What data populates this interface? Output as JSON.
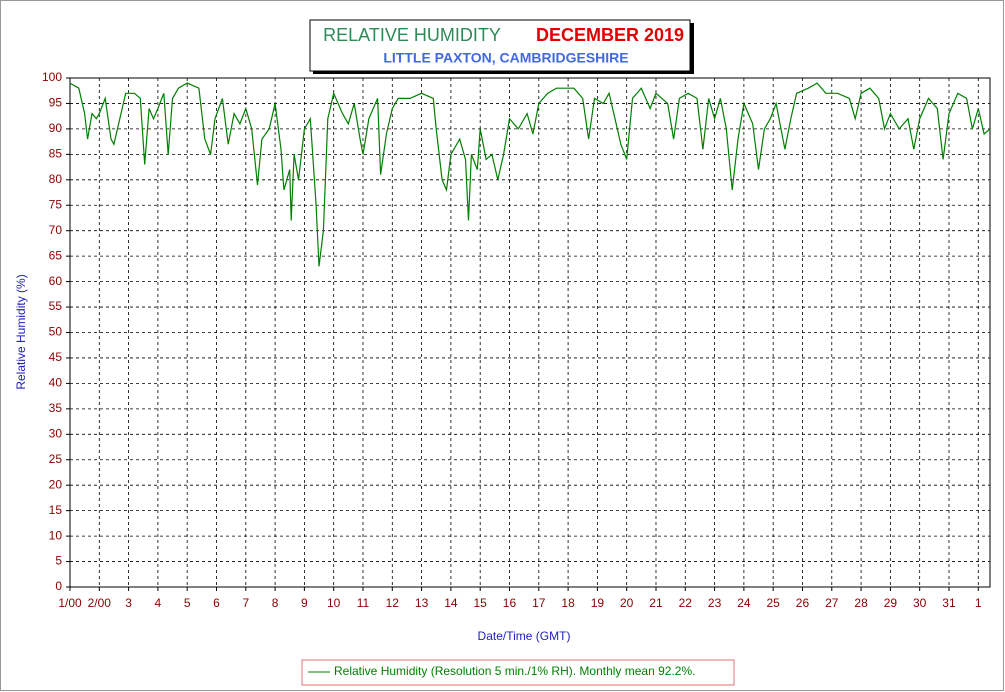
{
  "chart_data": {
    "type": "line",
    "title": "RELATIVE HUMIDITY",
    "title_period": "DECEMBER 2019",
    "subtitle": "LITTLE PAXTON, CAMBRIDGESHIRE",
    "xlabel": "Date/Time (GMT)",
    "ylabel": "Relative Humidity (%)",
    "xlim": [
      1,
      32.4
    ],
    "ylim": [
      0,
      100
    ],
    "xticks": [
      {
        "value": 1,
        "label": "1/00"
      },
      {
        "value": 2,
        "label": "2/00"
      },
      3,
      4,
      5,
      6,
      7,
      8,
      9,
      10,
      11,
      12,
      13,
      14,
      15,
      16,
      17,
      18,
      19,
      20,
      21,
      22,
      23,
      24,
      25,
      26,
      27,
      28,
      29,
      30,
      31,
      {
        "value": 32,
        "label": "1"
      }
    ],
    "yticks": [
      0,
      5,
      10,
      15,
      20,
      25,
      30,
      35,
      40,
      45,
      50,
      55,
      60,
      65,
      70,
      75,
      80,
      85,
      90,
      95,
      100
    ],
    "grid": true,
    "legend": "bottom",
    "x": [
      1.0,
      1.3,
      1.5,
      1.6,
      1.75,
      1.9,
      2.0,
      2.2,
      2.4,
      2.5,
      2.7,
      2.9,
      3.2,
      3.4,
      3.55,
      3.7,
      3.85,
      4.0,
      4.2,
      4.35,
      4.5,
      4.7,
      5.0,
      5.4,
      5.6,
      5.8,
      5.95,
      6.2,
      6.4,
      6.6,
      6.8,
      7.0,
      7.2,
      7.4,
      7.55,
      7.8,
      8.0,
      8.2,
      8.3,
      8.5,
      8.55,
      8.65,
      8.8,
      9.0,
      9.2,
      9.4,
      9.5,
      9.65,
      9.8,
      10.0,
      10.3,
      10.5,
      10.7,
      10.9,
      11.0,
      11.2,
      11.5,
      11.6,
      11.8,
      12.0,
      12.2,
      12.6,
      13.0,
      13.4,
      13.5,
      13.7,
      13.85,
      14.0,
      14.3,
      14.5,
      14.6,
      14.7,
      14.9,
      15.0,
      15.2,
      15.4,
      15.6,
      15.8,
      16.0,
      16.3,
      16.6,
      16.8,
      17.0,
      17.3,
      17.6,
      18.2,
      18.5,
      18.7,
      18.9,
      19.2,
      19.4,
      19.6,
      19.8,
      20.0,
      20.2,
      20.5,
      20.8,
      21.0,
      21.4,
      21.6,
      21.8,
      22.1,
      22.4,
      22.6,
      22.8,
      23.0,
      23.2,
      23.4,
      23.6,
      23.8,
      24.0,
      24.3,
      24.5,
      24.7,
      24.9,
      25.1,
      25.4,
      25.6,
      25.8,
      26.2,
      26.5,
      26.8,
      27.2,
      27.6,
      27.8,
      28.0,
      28.3,
      28.6,
      28.8,
      29.0,
      29.3,
      29.6,
      29.8,
      30.0,
      30.3,
      30.6,
      30.8,
      31.0,
      31.3,
      31.6,
      31.8,
      32.0,
      32.2,
      32.4
    ],
    "series": [
      {
        "name": "Relative Humidity (Resolution 5 min./1% RH). Monthly mean 92.2%.",
        "color": "#008000",
        "values": [
          99,
          98,
          93,
          88,
          93,
          92,
          93,
          96,
          88,
          87,
          92,
          97,
          97,
          96,
          83,
          94,
          92,
          94,
          97,
          85,
          96,
          98,
          99,
          98,
          88,
          85,
          92,
          96,
          87,
          93,
          91,
          94,
          90,
          79,
          88,
          90,
          95,
          86,
          78,
          82,
          72,
          85,
          80,
          90,
          92,
          75,
          63,
          70,
          92,
          97,
          93,
          91,
          95,
          88,
          85,
          92,
          96,
          81,
          89,
          94,
          96,
          96,
          97,
          96,
          90,
          80,
          78,
          85,
          88,
          84,
          72,
          85,
          82,
          90,
          84,
          85,
          80,
          85,
          92,
          90,
          93,
          89,
          95,
          97,
          98,
          98,
          96,
          88,
          96,
          95,
          97,
          92,
          87,
          84,
          96,
          98,
          94,
          97,
          95,
          88,
          96,
          97,
          96,
          86,
          96,
          92,
          96,
          90,
          78,
          88,
          95,
          91,
          82,
          90,
          92,
          95,
          86,
          92,
          97,
          98,
          99,
          97,
          97,
          96,
          92,
          97,
          98,
          96,
          90,
          93,
          90,
          92,
          86,
          92,
          96,
          94,
          84,
          93,
          97,
          96,
          90,
          94,
          89,
          90
        ]
      }
    ]
  }
}
